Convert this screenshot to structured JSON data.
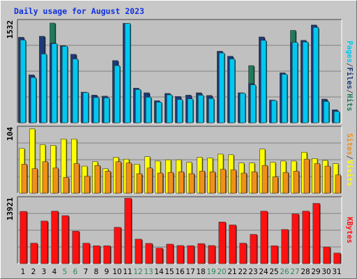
{
  "chart_data": {
    "type": "bar",
    "title": "Daily usage for August 2023",
    "categories": [
      "1",
      "2",
      "3",
      "4",
      "5",
      "6",
      "7",
      "8",
      "9",
      "10",
      "11",
      "12",
      "13",
      "14",
      "15",
      "16",
      "17",
      "18",
      "19",
      "20",
      "21",
      "22",
      "23",
      "24",
      "25",
      "26",
      "27",
      "28",
      "29",
      "30",
      "31"
    ],
    "weekend_days": [
      "5",
      "6",
      "12",
      "13",
      "19",
      "20",
      "26",
      "27"
    ],
    "panels": [
      {
        "id": "hits",
        "max_label": "1532",
        "ymax": 1532,
        "right_label": [
          "Pages",
          "/",
          "Files",
          "/",
          "Hits"
        ],
        "series": [
          {
            "name": "Hits",
            "color": "#1f7a5c",
            "values": [
              1285,
              720,
              1300,
              1500,
              1160,
              1030,
              460,
              415,
              400,
              935,
              1495,
              520,
              450,
              330,
              440,
              395,
              415,
              450,
              410,
              1075,
              1000,
              450,
              860,
              1290,
              340,
              750,
              1390,
              1240,
              1470,
              355,
              195
            ]
          },
          {
            "name": "Files",
            "color": "#1b3a7a",
            "values": [
              1285,
              720,
              1300,
              1200,
              1160,
              1030,
              460,
              415,
              400,
              935,
              1495,
              520,
              450,
              330,
              440,
              395,
              415,
              450,
              410,
              1075,
              1000,
              450,
              590,
              1290,
              340,
              750,
              1210,
              1240,
              1470,
              355,
              195
            ]
          },
          {
            "name": "Pages",
            "color": "#00c8f0",
            "values": [
              1245,
              680,
              1035,
              1190,
              1150,
              960,
              455,
              380,
              375,
              860,
              1495,
              500,
              385,
              310,
              420,
              350,
              360,
              415,
              365,
              1050,
              960,
              445,
              570,
              1240,
              335,
              730,
              1210,
              1215,
              1435,
              320,
              170
            ]
          }
        ]
      },
      {
        "id": "visits",
        "max_label": "104",
        "ymax": 104,
        "right_label": [
          "Sites",
          "/",
          "Visits"
        ],
        "series": [
          {
            "name": "Visits",
            "color": "#ffff00",
            "values": [
              71,
              102,
              77,
              76,
              86,
              86,
              43,
              50,
              39,
              57,
              54,
              46,
              58,
              51,
              53,
              53,
              49,
              57,
              56,
              62,
              61,
              48,
              48,
              70,
              49,
              51,
              51,
              65,
              55,
              52,
              47
            ]
          },
          {
            "name": "Sites",
            "color": "#f09018",
            "values": [
              46,
              39,
              50,
              40,
              25,
              47,
              27,
              44,
              35,
              50,
              48,
              31,
              40,
              32,
              33,
              34,
              31,
              35,
              34,
              38,
              37,
              32,
              34,
              44,
              26,
              33,
              35,
              54,
              47,
              43,
              29
            ]
          }
        ]
      },
      {
        "id": "kbytes",
        "max_label": "13921",
        "ymax": 13921,
        "right_label": [
          "KBytes"
        ],
        "series": [
          {
            "name": "KBytes",
            "color": "#ff1010",
            "values": [
              11100,
              4350,
              9050,
              11150,
              10200,
              6900,
              4350,
              3800,
              3800,
              7720,
              13900,
              5200,
              4300,
              3300,
              4150,
              3850,
              3820,
              4260,
              3850,
              8850,
              8220,
              4350,
              6220,
              11150,
              3800,
              7260,
              10550,
              11150,
              12800,
              3550,
              2250
            ]
          }
        ]
      }
    ]
  }
}
